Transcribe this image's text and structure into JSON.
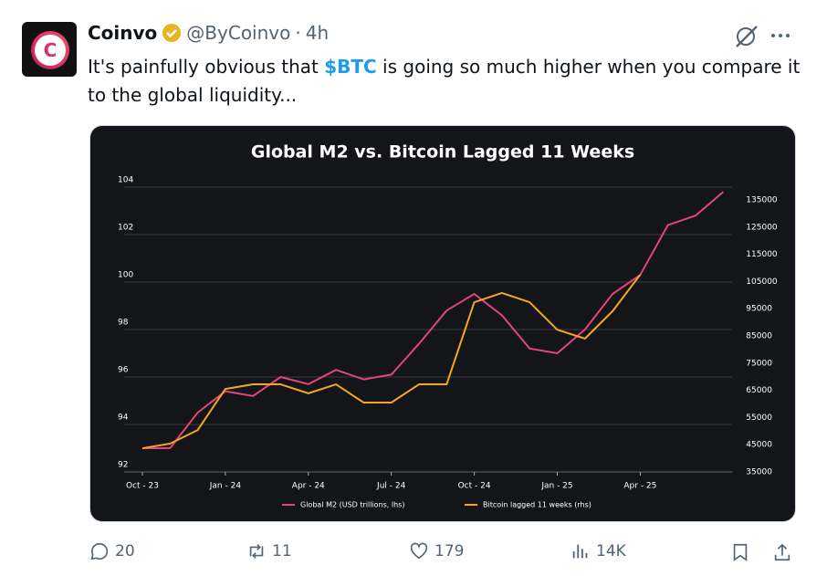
{
  "tweet": {
    "avatar_letter": "C",
    "author": "Coinvo",
    "handle": "@ByCoinvo",
    "separator": "·",
    "time": "4h",
    "text_before": "It's painfully obvious that ",
    "cashtag": "$BTC",
    "text_after": " is going so much higher when you compare it to the global liquidity...",
    "replies": "20",
    "reposts": "11",
    "likes": "179",
    "views": "14K"
  },
  "chart_data": {
    "type": "line",
    "title": "Global M2 vs. Bitcoin Lagged 11 Weeks",
    "categories": [
      "Oct - 23",
      null,
      null,
      "Jan - 24",
      null,
      null,
      "Apr - 24",
      null,
      null,
      "Jul - 24",
      null,
      null,
      "Oct - 24",
      null,
      null,
      "Jan - 25",
      null,
      null,
      "Apr - 25",
      null,
      null,
      null
    ],
    "series": [
      {
        "name": "Global M2 (USD trillions, lhs)",
        "color": "#e0457b",
        "axis": "y",
        "values": [
          93.0,
          93.0,
          94.5,
          95.4,
          95.2,
          96.0,
          95.7,
          96.3,
          95.9,
          96.1,
          97.4,
          98.8,
          99.5,
          98.6,
          97.2,
          97.0,
          98.0,
          99.5,
          100.3,
          102.4,
          102.8,
          103.8
        ]
      },
      {
        "name": "Bitcoin lagged 11 weeks (rhs)",
        "color": "#f5a623",
        "axis": "y2",
        "values": [
          43700,
          45400,
          50400,
          65500,
          67200,
          67200,
          63900,
          67200,
          60500,
          60500,
          67200,
          67200,
          97400,
          100800,
          97400,
          87300,
          84000,
          94100,
          107500,
          null,
          null,
          null
        ]
      }
    ],
    "ylim": [
      92,
      104
    ],
    "yticks": [
      92,
      94,
      96,
      98,
      100,
      102,
      104
    ],
    "y2lim": [
      35000,
      139700
    ],
    "y2ticks": [
      35000,
      45000,
      55000,
      65000,
      75000,
      85000,
      95000,
      105000,
      115000,
      125000,
      135000
    ],
    "grid": true,
    "legend": "bottom"
  }
}
